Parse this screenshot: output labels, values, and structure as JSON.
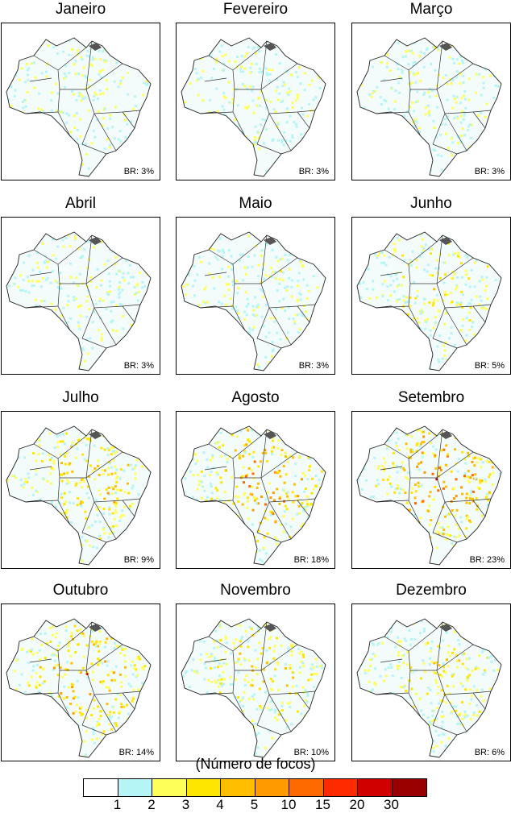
{
  "panels": [
    {
      "month": "Janeiro",
      "br": "BR: 3%",
      "intensity": 0.12
    },
    {
      "month": "Fevereiro",
      "br": "BR: 3%",
      "intensity": 0.1
    },
    {
      "month": "Março",
      "br": "BR: 3%",
      "intensity": 0.12
    },
    {
      "month": "Abril",
      "br": "BR: 3%",
      "intensity": 0.1
    },
    {
      "month": "Maio",
      "br": "BR: 3%",
      "intensity": 0.14
    },
    {
      "month": "Junho",
      "br": "BR: 5%",
      "intensity": 0.35
    },
    {
      "month": "Julho",
      "br": "BR: 9%",
      "intensity": 0.6
    },
    {
      "month": "Agosto",
      "br": "BR: 18%",
      "intensity": 0.85
    },
    {
      "month": "Setembro",
      "br": "BR: 23%",
      "intensity": 1.0
    },
    {
      "month": "Outubro",
      "br": "BR: 14%",
      "intensity": 0.75
    },
    {
      "month": "Novembro",
      "br": "BR: 10%",
      "intensity": 0.5
    },
    {
      "month": "Dezembro",
      "br": "BR: 6%",
      "intensity": 0.35
    }
  ],
  "legend": {
    "title": "(Número de focos)",
    "ticks": [
      "1",
      "2",
      "3",
      "4",
      "5",
      "10",
      "15",
      "20",
      "30"
    ],
    "colors": [
      "#ffffff",
      "#b5f5f5",
      "#ffff5a",
      "#ffe600",
      "#ffbf00",
      "#ff9a00",
      "#ff6a00",
      "#ff2a00",
      "#d10000",
      "#9a0000"
    ]
  }
}
